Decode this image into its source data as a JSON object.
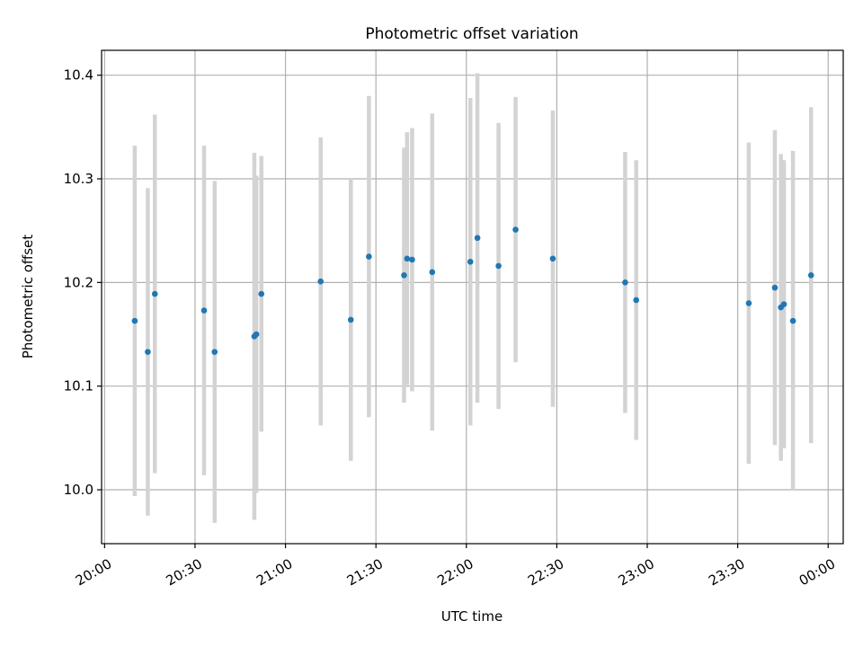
{
  "chart_data": {
    "type": "scatter",
    "title": "Photometric offset variation",
    "xlabel": "UTC time",
    "ylabel": "Photometric offset",
    "xlim_minutes": [
      1199,
      1445
    ],
    "ylim": [
      9.948,
      10.424
    ],
    "x_ticks": [
      {
        "minutes": 1200,
        "label": "20:00"
      },
      {
        "minutes": 1230,
        "label": "20:30"
      },
      {
        "minutes": 1260,
        "label": "21:00"
      },
      {
        "minutes": 1290,
        "label": "21:30"
      },
      {
        "minutes": 1320,
        "label": "22:00"
      },
      {
        "minutes": 1350,
        "label": "22:30"
      },
      {
        "minutes": 1380,
        "label": "23:00"
      },
      {
        "minutes": 1410,
        "label": "23:30"
      },
      {
        "minutes": 1440,
        "label": "00:00"
      }
    ],
    "y_ticks": [
      {
        "value": 10.0,
        "label": "10.0"
      },
      {
        "value": 10.1,
        "label": "10.1"
      },
      {
        "value": 10.2,
        "label": "10.2"
      },
      {
        "value": 10.3,
        "label": "10.3"
      },
      {
        "value": 10.4,
        "label": "10.4"
      }
    ],
    "grid": true,
    "point_color": "#1f77b4",
    "errorbar_color": "#d3d3d3",
    "series": [
      {
        "name": "offset",
        "points": [
          {
            "time": "20:10:00",
            "x": 1210.0,
            "y": 10.163,
            "err": 0.169
          },
          {
            "time": "20:14:20",
            "x": 1214.33,
            "y": 10.133,
            "err": 0.158
          },
          {
            "time": "20:16:40",
            "x": 1216.67,
            "y": 10.189,
            "err": 0.173
          },
          {
            "time": "20:33:00",
            "x": 1233.0,
            "y": 10.173,
            "err": 0.159
          },
          {
            "time": "20:36:30",
            "x": 1236.5,
            "y": 10.133,
            "err": 0.165
          },
          {
            "time": "20:49:40",
            "x": 1249.67,
            "y": 10.148,
            "err": 0.177
          },
          {
            "time": "20:50:20",
            "x": 1250.33,
            "y": 10.15,
            "err": 0.153
          },
          {
            "time": "20:52:00",
            "x": 1252.0,
            "y": 10.189,
            "err": 0.133
          },
          {
            "time": "21:11:40",
            "x": 1271.67,
            "y": 10.201,
            "err": 0.139
          },
          {
            "time": "21:21:40",
            "x": 1281.67,
            "y": 10.164,
            "err": 0.136
          },
          {
            "time": "21:27:40",
            "x": 1287.67,
            "y": 10.225,
            "err": 0.155
          },
          {
            "time": "21:39:20",
            "x": 1299.33,
            "y": 10.207,
            "err": 0.123
          },
          {
            "time": "21:40:20",
            "x": 1300.33,
            "y": 10.223,
            "err": 0.122
          },
          {
            "time": "21:42:00",
            "x": 1302.0,
            "y": 10.222,
            "err": 0.127
          },
          {
            "time": "21:48:40",
            "x": 1308.67,
            "y": 10.21,
            "err": 0.153
          },
          {
            "time": "22:01:20",
            "x": 1321.33,
            "y": 10.22,
            "err": 0.158
          },
          {
            "time": "22:03:40",
            "x": 1323.67,
            "y": 10.243,
            "err": 0.159
          },
          {
            "time": "22:10:40",
            "x": 1330.67,
            "y": 10.216,
            "err": 0.138
          },
          {
            "time": "22:16:20",
            "x": 1336.33,
            "y": 10.251,
            "err": 0.128
          },
          {
            "time": "22:28:40",
            "x": 1348.67,
            "y": 10.223,
            "err": 0.143
          },
          {
            "time": "22:52:40",
            "x": 1372.67,
            "y": 10.2,
            "err": 0.126
          },
          {
            "time": "22:56:20",
            "x": 1376.33,
            "y": 10.183,
            "err": 0.135
          },
          {
            "time": "23:33:40",
            "x": 1413.67,
            "y": 10.18,
            "err": 0.155
          },
          {
            "time": "23:42:20",
            "x": 1422.33,
            "y": 10.195,
            "err": 0.152
          },
          {
            "time": "23:44:20",
            "x": 1424.33,
            "y": 10.176,
            "err": 0.148
          },
          {
            "time": "23:45:20",
            "x": 1425.33,
            "y": 10.179,
            "err": 0.139
          },
          {
            "time": "23:48:20",
            "x": 1428.33,
            "y": 10.163,
            "err": 0.164
          },
          {
            "time": "23:54:20",
            "x": 1434.33,
            "y": 10.207,
            "err": 0.162
          }
        ]
      }
    ]
  }
}
